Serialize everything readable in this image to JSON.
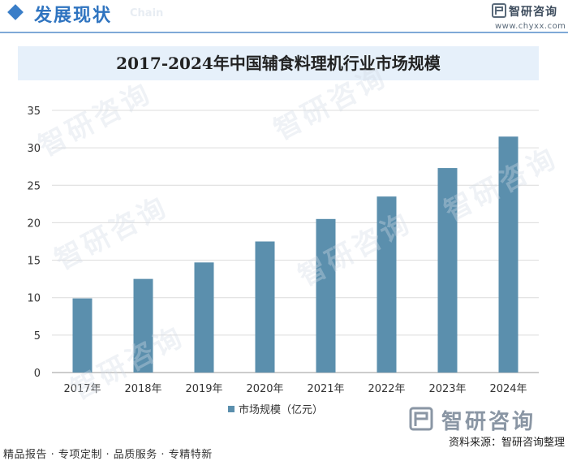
{
  "header": {
    "title": "发展现状",
    "subtitle": "Chain",
    "brand": "智研咨询",
    "url": "www.chyxx.com"
  },
  "watermark": {
    "text": "智研咨询"
  },
  "bottom_brand": "智研咨询",
  "source": "资料来源：智研咨询整理",
  "footer": "精品报告 · 专项定制 · 品质服务 · 专精特新",
  "colors": {
    "bar": "#5b8fad",
    "accent": "#3a7ec8",
    "title_bg": "#e6f0fa",
    "grid": "#dcdcdc"
  },
  "chart_data": {
    "type": "bar",
    "title": "2017-2024年中国辅食料理机行业市场规模",
    "categories": [
      "2017年",
      "2018年",
      "2019年",
      "2020年",
      "2021年",
      "2022年",
      "2023年",
      "2024年"
    ],
    "series": [
      {
        "name": "市场规模（亿元）",
        "values": [
          9.9,
          12.5,
          14.7,
          17.5,
          20.5,
          23.5,
          27.3,
          31.5
        ]
      }
    ],
    "yticks": [
      0,
      5,
      10,
      15,
      20,
      25,
      30,
      35
    ],
    "ylim": [
      0,
      35
    ],
    "xlabel": "",
    "ylabel": "",
    "grid": true,
    "legend_position": "bottom"
  }
}
